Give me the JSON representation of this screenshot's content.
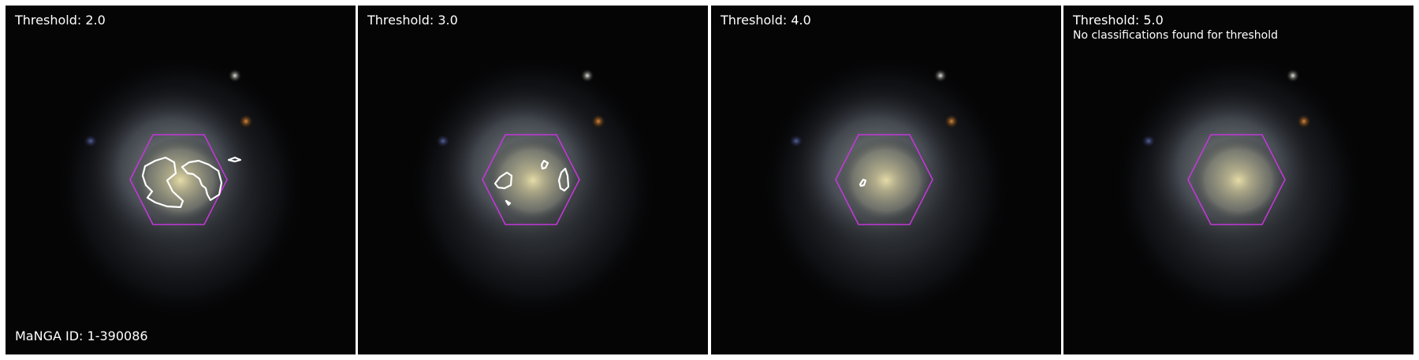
{
  "panels": [
    {
      "title": "Threshold: 2.0",
      "subtitle": "",
      "footer": "MaNGA ID: 1-390086"
    },
    {
      "title": "Threshold: 3.0",
      "subtitle": "",
      "footer": ""
    },
    {
      "title": "Threshold: 4.0",
      "subtitle": "",
      "footer": ""
    },
    {
      "title": "Threshold: 5.0",
      "subtitle": "No classifications found for threshold",
      "footer": ""
    }
  ],
  "colors": {
    "hexagon": "#c238d8",
    "contour": "#ffffff",
    "background": "#000000"
  }
}
